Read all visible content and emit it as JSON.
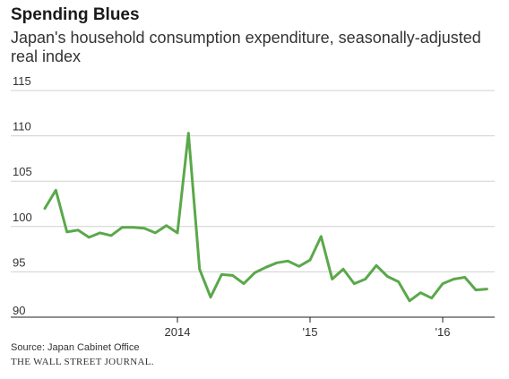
{
  "chart_data": {
    "type": "line",
    "title": "Spending Blues",
    "subtitle": "Japan's household consumption expenditure, seasonally-adjusted real index",
    "xlabel": "",
    "ylabel": "",
    "ylim": [
      90,
      115
    ],
    "y_ticks": [
      "115",
      "110",
      "105",
      "100",
      "95",
      "90"
    ],
    "x_tick_labels": [
      {
        "label": "2014",
        "x": "2014-01"
      },
      {
        "label": "'15",
        "x": "2015-01"
      },
      {
        "label": "'16",
        "x": "2016-01"
      }
    ],
    "grid": true,
    "color": "#5aa84a",
    "series": [
      {
        "x": [
          "2013-01",
          "2013-02",
          "2013-03",
          "2013-04",
          "2013-05",
          "2013-06",
          "2013-07",
          "2013-08",
          "2013-09",
          "2013-10",
          "2013-11",
          "2013-12",
          "2014-01",
          "2014-02",
          "2014-03",
          "2014-04",
          "2014-05",
          "2014-06",
          "2014-07",
          "2014-08",
          "2014-09",
          "2014-10",
          "2014-11",
          "2014-12",
          "2015-01",
          "2015-02",
          "2015-03",
          "2015-04",
          "2015-05",
          "2015-06",
          "2015-07",
          "2015-08",
          "2015-09",
          "2015-10",
          "2015-11",
          "2015-12",
          "2016-01",
          "2016-02",
          "2016-03",
          "2016-04",
          "2016-05"
        ],
        "values": [
          102.0,
          104.0,
          99.4,
          99.6,
          98.8,
          99.3,
          99.0,
          99.9,
          99.9,
          99.8,
          99.3,
          100.1,
          99.3,
          110.3,
          95.3,
          92.2,
          94.7,
          94.6,
          93.7,
          94.9,
          95.5,
          96.0,
          96.2,
          95.6,
          96.3,
          98.9,
          94.2,
          95.3,
          93.7,
          94.2,
          95.7,
          94.5,
          93.9,
          91.8,
          92.7,
          92.1,
          93.7,
          94.2,
          94.4,
          93.0,
          93.1
        ]
      }
    ]
  },
  "footer": {
    "source": "Source: Japan Cabinet Office",
    "brand": "THE WALL STREET JOURNAL."
  }
}
